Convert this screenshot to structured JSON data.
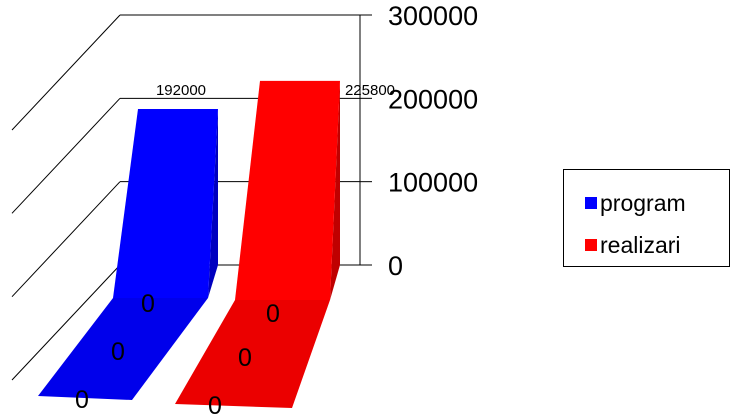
{
  "chart_data": {
    "type": "bar",
    "categories": [
      "0",
      "0",
      "0"
    ],
    "series": [
      {
        "name": "program",
        "values": [
          0,
          0,
          192000
        ],
        "labels": [
          "0",
          "0",
          "192000"
        ],
        "color": "#0000ff"
      },
      {
        "name": "realizari",
        "values": [
          0,
          0,
          225800
        ],
        "labels": [
          "0",
          "0",
          "225800"
        ],
        "color": "#ff0000"
      }
    ],
    "yticks": [
      "300000",
      "200000",
      "100000",
      "0"
    ],
    "ylim": [
      0,
      300000
    ],
    "grid": true,
    "legend": "right",
    "title": "",
    "xlabel": "",
    "ylabel": ""
  }
}
